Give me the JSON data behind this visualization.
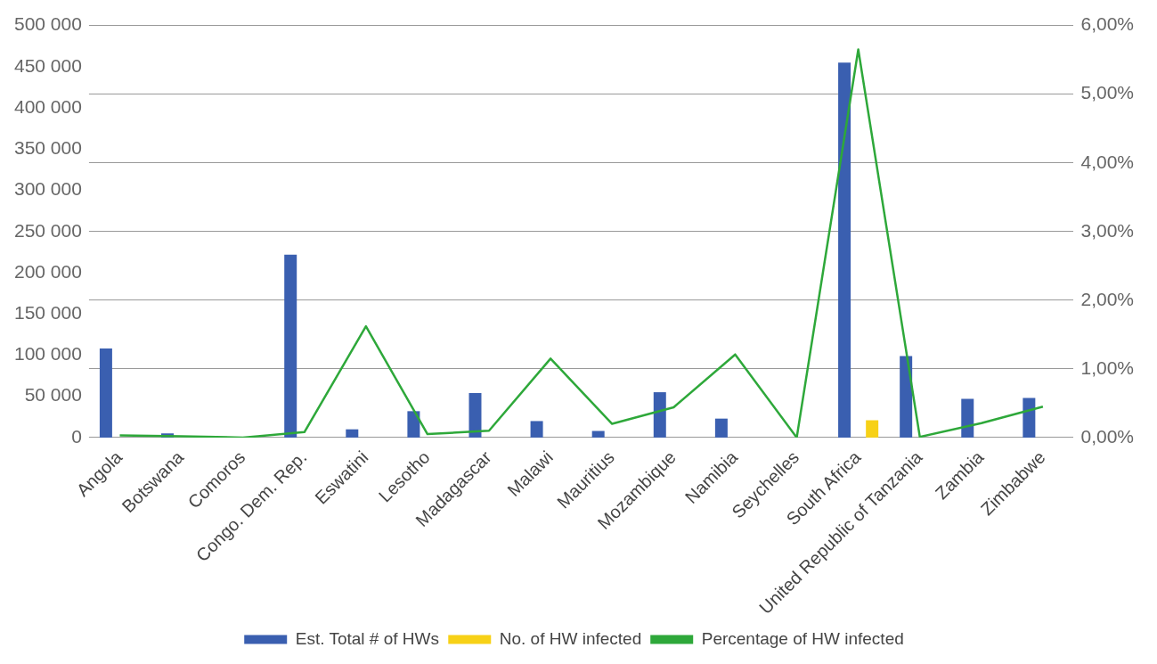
{
  "chart_data": {
    "type": "bar",
    "categories": [
      "Angola",
      "Botswana",
      "Comoros",
      "Congo. Dem. Rep.",
      "Eswatini",
      "Lesotho",
      "Madagascar",
      "Malawi",
      "Mauritius",
      "Mozambique",
      "Namibia",
      "Seychelles",
      "South Africa",
      "United Republic of Tanzania",
      "Zambia",
      "Zimbabwe"
    ],
    "series": [
      {
        "name": "Est. Total # of HWs",
        "color": "#3a5fb0",
        "values": [
          108000,
          5000,
          1000,
          222000,
          10000,
          32000,
          54000,
          20000,
          8000,
          55000,
          23000,
          0,
          455000,
          99000,
          47000,
          48000
        ]
      },
      {
        "name": "No. of HW infected",
        "color": "#f7d117",
        "values": [
          0,
          0,
          0,
          0,
          0,
          0,
          0,
          0,
          0,
          0,
          0,
          0,
          21000,
          0,
          0,
          0
        ]
      },
      {
        "name": "Percentage of HW infected",
        "color": "#2ea83a",
        "type": "line",
        "axis": "y2",
        "values": [
          0.03,
          0.02,
          0,
          0.08,
          1.62,
          0.05,
          0.1,
          1.15,
          0.2,
          0.44,
          1.21,
          0,
          5.65,
          0.01,
          0.21,
          0.45
        ]
      }
    ],
    "ylim": [
      0,
      500000
    ],
    "yticks": [
      {
        "value": 0,
        "label": "0"
      },
      {
        "value": 50000,
        "label": "50 000"
      },
      {
        "value": 100000,
        "label": "100 000"
      },
      {
        "value": 150000,
        "label": "150 000"
      },
      {
        "value": 200000,
        "label": "200 000"
      },
      {
        "value": 250000,
        "label": "250 000"
      },
      {
        "value": 300000,
        "label": "300 000"
      },
      {
        "value": 350000,
        "label": "350 000"
      },
      {
        "value": 400000,
        "label": "400 000"
      },
      {
        "value": 450000,
        "label": "450 000"
      },
      {
        "value": 500000,
        "label": "500 000"
      }
    ],
    "y2lim": [
      0,
      6
    ],
    "y2ticks": [
      {
        "value": 0,
        "label": "0,00%"
      },
      {
        "value": 1,
        "label": "1,00%"
      },
      {
        "value": 2,
        "label": "2,00%"
      },
      {
        "value": 3,
        "label": "3,00%"
      },
      {
        "value": 4,
        "label": "4,00%"
      },
      {
        "value": 5,
        "label": "5,00%"
      },
      {
        "value": 6,
        "label": "6,00%"
      }
    ],
    "grid": "y2",
    "legend": "bottom",
    "marker": "none"
  }
}
